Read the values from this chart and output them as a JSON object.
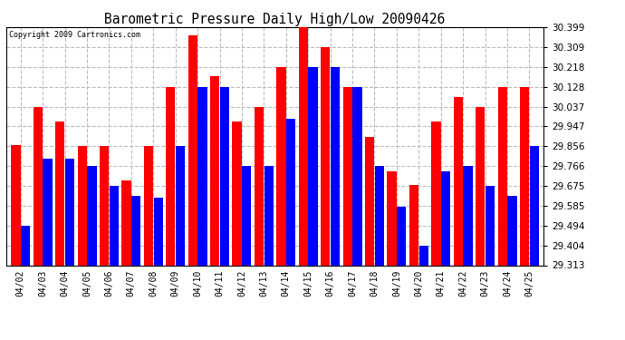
{
  "title": "Barometric Pressure Daily High/Low 20090426",
  "copyright": "Copyright 2009 Cartronics.com",
  "dates": [
    "04/02",
    "04/03",
    "04/04",
    "04/05",
    "04/06",
    "04/07",
    "04/08",
    "04/09",
    "04/10",
    "04/11",
    "04/12",
    "04/13",
    "04/14",
    "04/15",
    "04/16",
    "04/17",
    "04/18",
    "04/19",
    "04/20",
    "04/21",
    "04/22",
    "04/23",
    "04/24",
    "04/25"
  ],
  "highs": [
    29.86,
    30.037,
    29.967,
    29.856,
    29.856,
    29.7,
    29.856,
    30.128,
    30.36,
    30.175,
    29.967,
    30.037,
    30.218,
    30.399,
    30.309,
    30.128,
    29.9,
    29.74,
    29.68,
    29.967,
    30.08,
    30.037,
    30.128,
    30.128
  ],
  "lows": [
    29.494,
    29.8,
    29.8,
    29.766,
    29.675,
    29.63,
    29.62,
    29.856,
    30.128,
    30.128,
    29.766,
    29.766,
    29.98,
    30.218,
    30.218,
    30.128,
    29.766,
    29.58,
    29.404,
    29.74,
    29.766,
    29.675,
    29.63,
    29.856
  ],
  "high_color": "#ff0000",
  "low_color": "#0000ff",
  "bg_color": "#ffffff",
  "grid_color": "#bebebe",
  "ymin": 29.313,
  "ymax": 30.399,
  "yticks": [
    29.313,
    29.404,
    29.494,
    29.585,
    29.675,
    29.766,
    29.856,
    29.947,
    30.037,
    30.128,
    30.218,
    30.309,
    30.399
  ]
}
